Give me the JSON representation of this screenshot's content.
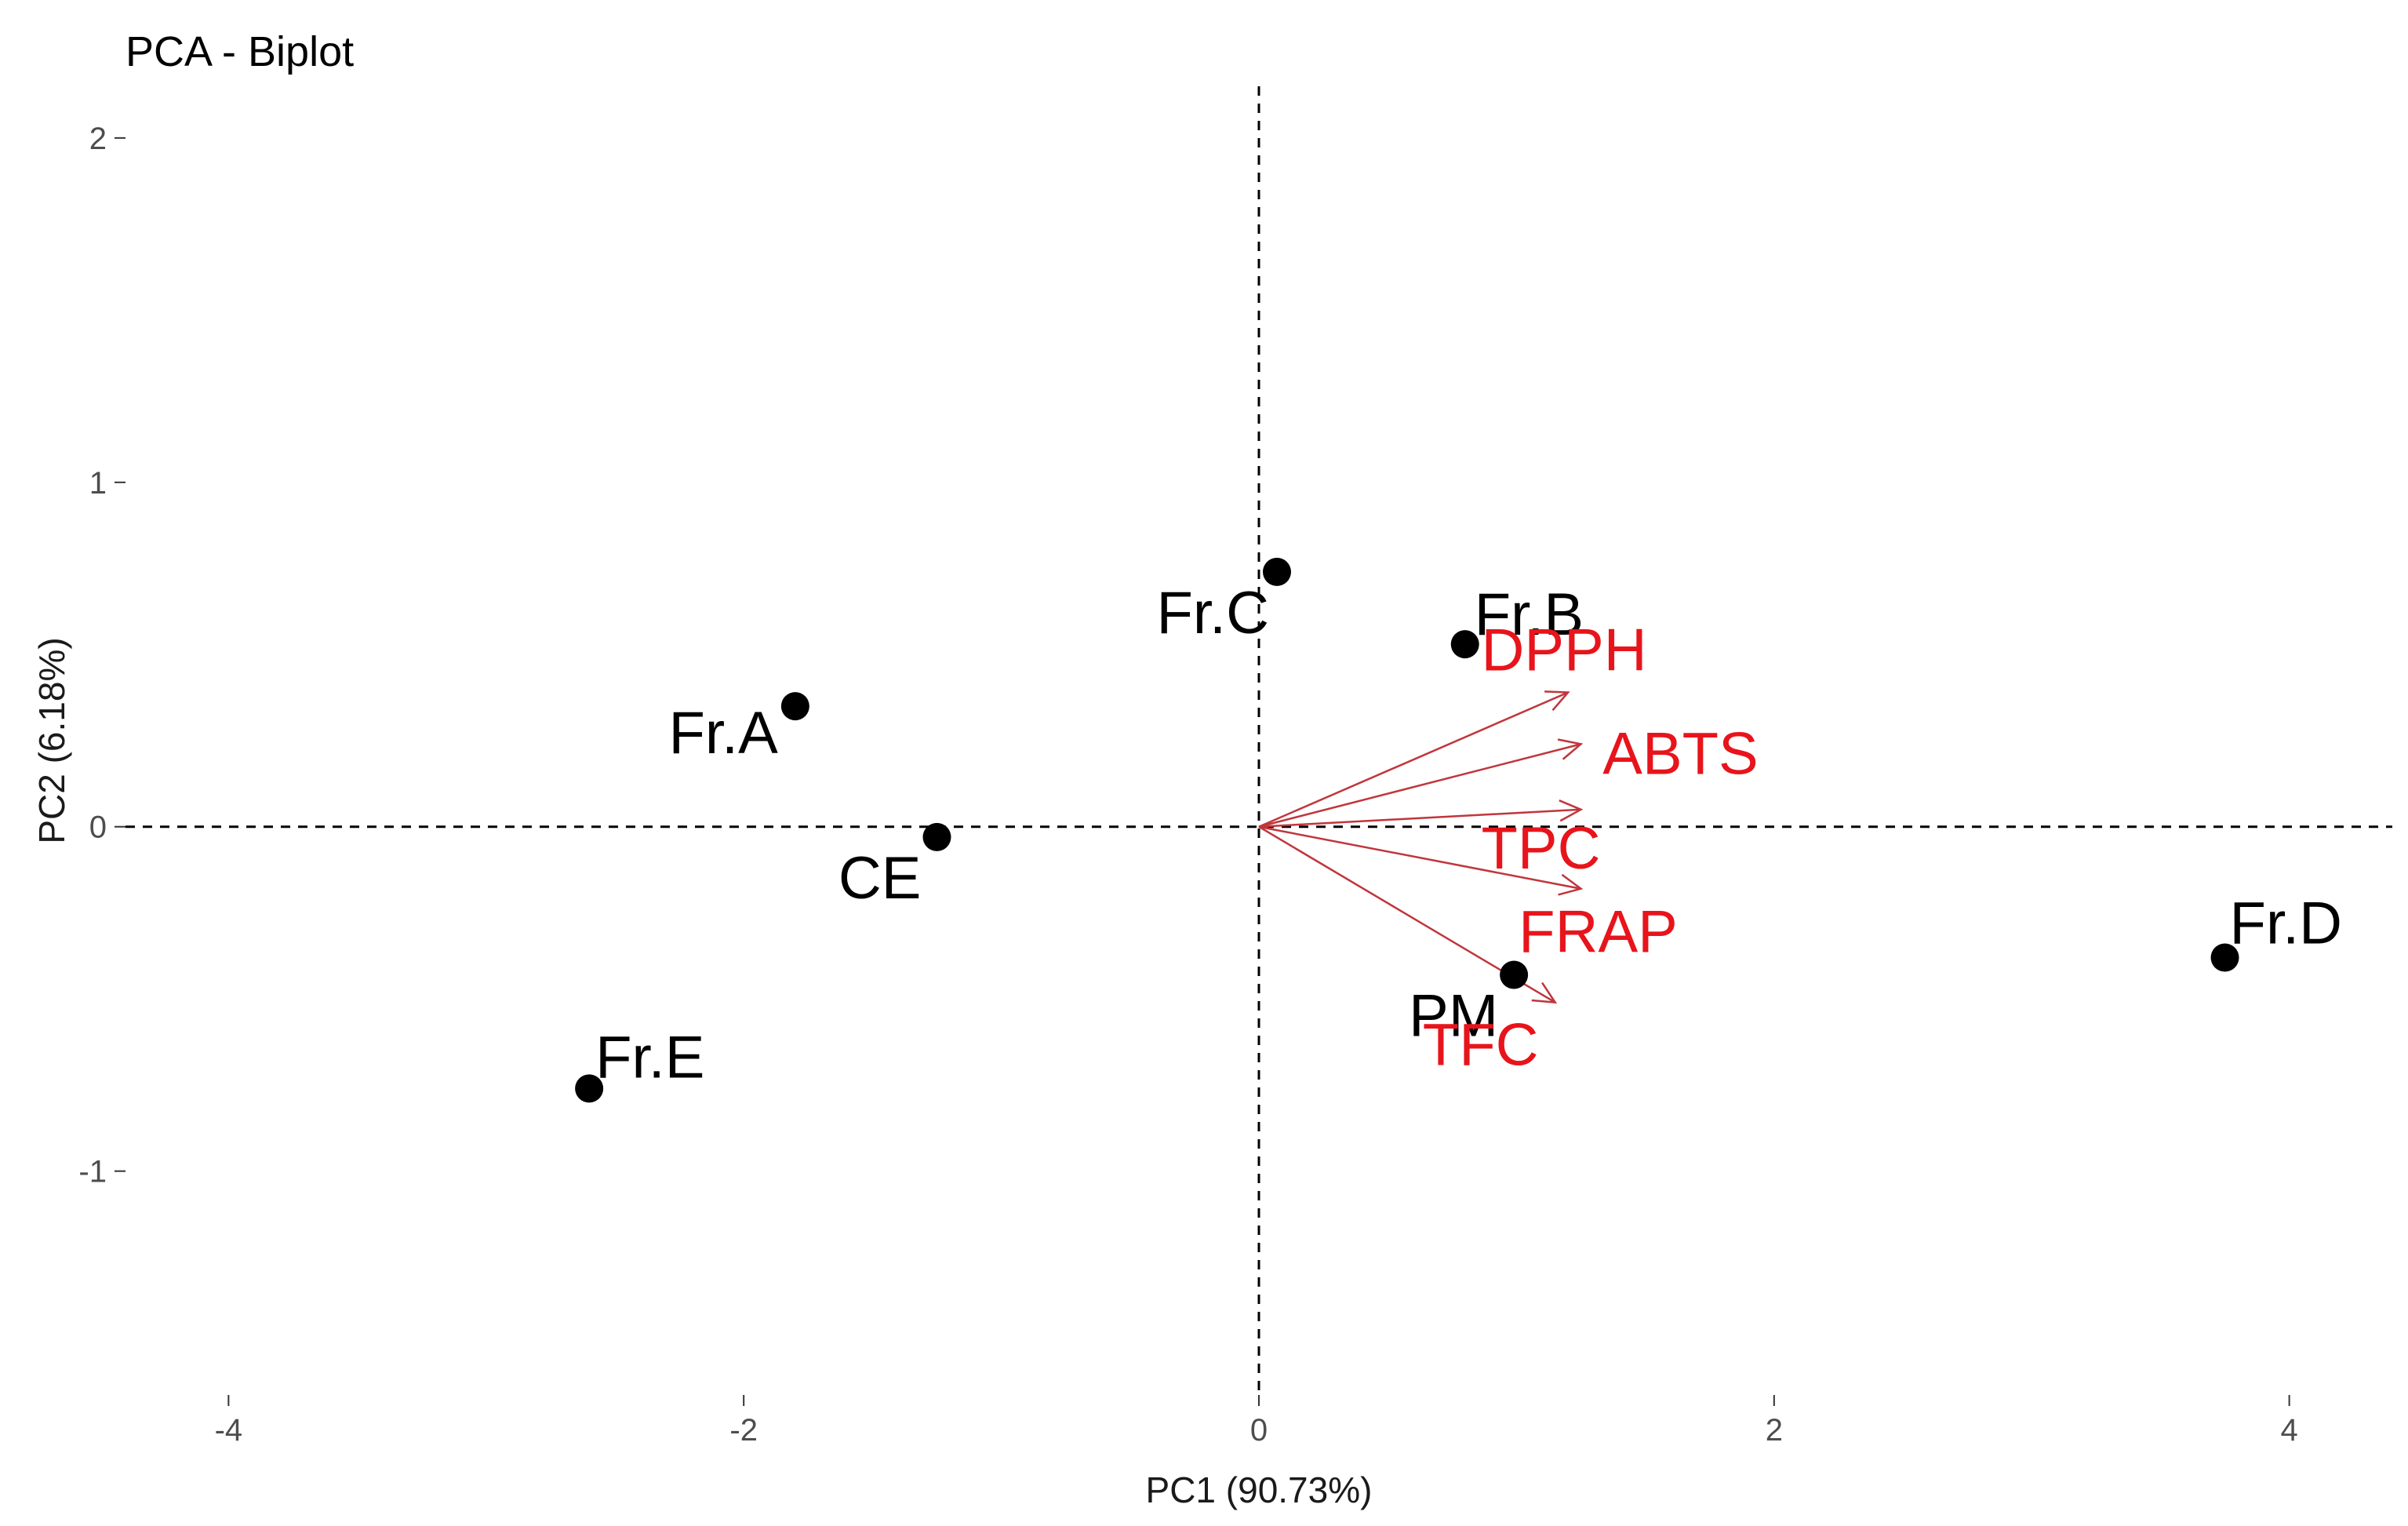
{
  "chart_data": {
    "type": "scatter",
    "title": "PCA - Biplot",
    "xlabel": "PC1 (90.73%)",
    "ylabel": "PC2 (6.18%)",
    "xlim": [
      -4.4,
      4.4
    ],
    "ylim": [
      -1.65,
      2.15
    ],
    "x_ticks": [
      -4,
      -2,
      0,
      2,
      4
    ],
    "y_ticks": [
      -1,
      0,
      1,
      2
    ],
    "x_tick_labels": [
      "-4",
      "-2",
      "0",
      "2",
      "4"
    ],
    "y_tick_labels": [
      "-1",
      "0",
      "1",
      "2"
    ],
    "grid": false,
    "reference_lines": {
      "x": 0,
      "y": 0,
      "style": "dashed"
    },
    "points": [
      {
        "label": "Fr.A",
        "x": -1.8,
        "y": 0.35
      },
      {
        "label": "Fr.B",
        "x": 0.8,
        "y": 0.53
      },
      {
        "label": "Fr.C",
        "x": 0.07,
        "y": 0.74
      },
      {
        "label": "Fr.D",
        "x": 3.75,
        "y": -0.38
      },
      {
        "label": "Fr.E",
        "x": -2.6,
        "y": -0.76
      },
      {
        "label": "CE",
        "x": -1.25,
        "y": -0.03
      },
      {
        "label": "PM",
        "x": 0.99,
        "y": -0.43
      }
    ],
    "variables": [
      {
        "label": "DPPH",
        "x": 1.2,
        "y": 0.39
      },
      {
        "label": "ABTS",
        "x": 1.25,
        "y": 0.24
      },
      {
        "label": "TPC",
        "x": 1.25,
        "y": 0.05
      },
      {
        "label": "FRAP",
        "x": 1.25,
        "y": -0.18
      },
      {
        "label": "TFC",
        "x": 1.15,
        "y": -0.51
      }
    ],
    "colors": {
      "points": "#000000",
      "variables": "#e8141b",
      "arrows": "#c0363c"
    }
  }
}
